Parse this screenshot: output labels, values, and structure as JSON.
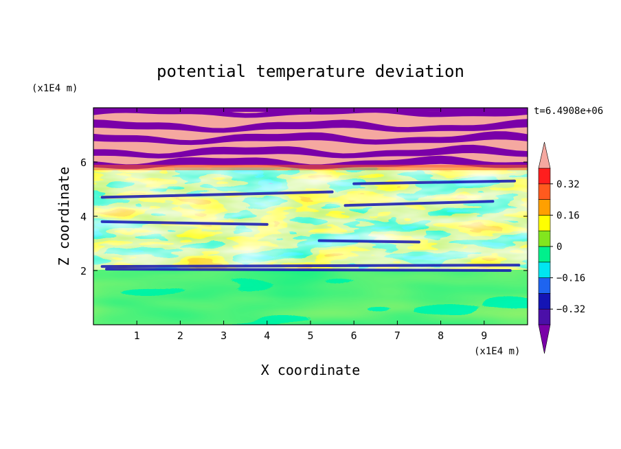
{
  "chart_data": {
    "type": "heatmap",
    "title": "potential temperature deviation",
    "xlabel": "X coordinate",
    "ylabel": "Z coordinate",
    "x_unit": "(x1E4 m)",
    "y_unit": "(x1E4 m)",
    "time_label": "t=6.4908e+06",
    "xlim": [
      0,
      10
    ],
    "ylim": [
      0,
      8
    ],
    "x_ticks": [
      "1",
      "2",
      "3",
      "4",
      "5",
      "6",
      "7",
      "8",
      "9"
    ],
    "y_ticks": [
      "2",
      "4",
      "6"
    ],
    "colorbar": {
      "levels": [
        -0.4,
        -0.32,
        -0.24,
        -0.16,
        -0.08,
        0,
        0.08,
        0.16,
        0.24,
        0.32,
        0.4
      ],
      "tick_labels": [
        "0.32",
        "0.16",
        "0",
        "−0.16",
        "−0.32"
      ],
      "colors": [
        "#7a00a8",
        "#4b0fa8",
        "#1414b4",
        "#1e64f0",
        "#00e6f0",
        "#00f08c",
        "#82e61e",
        "#ffff00",
        "#ffa000",
        "#ff5a1e",
        "#ff1e1e",
        "#f5a8a0"
      ],
      "extend": "both"
    },
    "layers": [
      {
        "z_range": [
          0,
          2
        ],
        "pattern": "mostly 0 (green / light green), smooth"
      },
      {
        "z_range": [
          2,
          5.8
        ],
        "pattern": "turbulent mixed layer, values from -0.4 to 0.4"
      },
      {
        "z_range": [
          5.8,
          8
        ],
        "pattern": "alternating horizontal bands of < -0.4 (purple) and > 0.4 (pink)"
      }
    ]
  }
}
